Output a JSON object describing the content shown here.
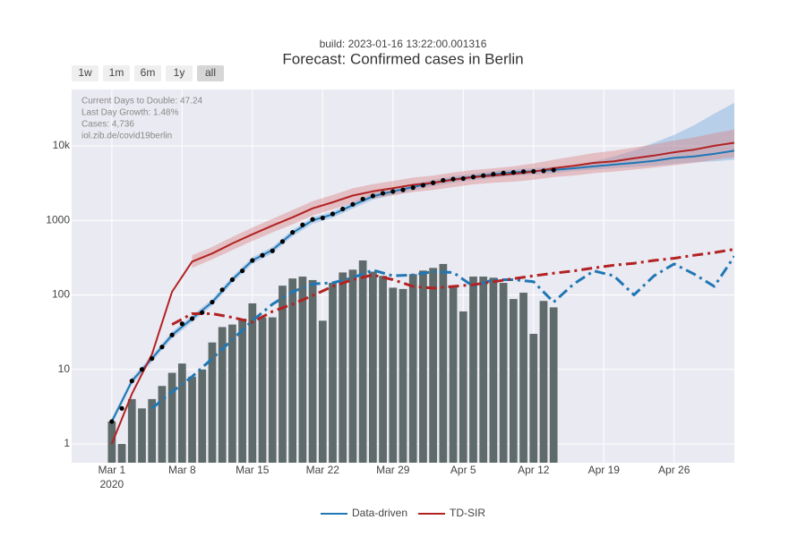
{
  "chart_data": {
    "type": "combo",
    "build": "build: 2023-01-16 13:22:00.001316",
    "title": "Forecast: Confirmed cases in Berlin",
    "buttons": [
      "1w",
      "1m",
      "6m",
      "1y",
      "all"
    ],
    "active_button": "all",
    "annotations": [
      "Current Days to Double: 47.24",
      "Last Day Growth: 1.48%",
      "Cases: 4,736",
      "iol.zib.de/covid19berlin"
    ],
    "xlim": [
      "2020-02-26",
      "2020-05-02"
    ],
    "xticks": [
      {
        "value": "2020-03-01",
        "label": "Mar 1",
        "sublabel": "2020"
      },
      {
        "value": "2020-03-08",
        "label": "Mar 8"
      },
      {
        "value": "2020-03-15",
        "label": "Mar 15"
      },
      {
        "value": "2020-03-22",
        "label": "Mar 22"
      },
      {
        "value": "2020-03-29",
        "label": "Mar 29"
      },
      {
        "value": "2020-04-05",
        "label": "Apr 5"
      },
      {
        "value": "2020-04-12",
        "label": "Apr 12"
      },
      {
        "value": "2020-04-19",
        "label": "Apr 19"
      },
      {
        "value": "2020-04-26",
        "label": "Apr 26"
      }
    ],
    "ylim": [
      0.56,
      57000
    ],
    "yticks": [
      1,
      10,
      100,
      1000,
      {
        "value": 10000,
        "label": "10k"
      }
    ],
    "log_y": true,
    "grid": true,
    "legend": "bottom",
    "bar_color": "#5f6b6b",
    "observed_color": "#000000",
    "x": [
      "2020-03-01",
      "2020-03-02",
      "2020-03-03",
      "2020-03-04",
      "2020-03-05",
      "2020-03-06",
      "2020-03-07",
      "2020-03-08",
      "2020-03-09",
      "2020-03-10",
      "2020-03-11",
      "2020-03-12",
      "2020-03-13",
      "2020-03-14",
      "2020-03-15",
      "2020-03-16",
      "2020-03-17",
      "2020-03-18",
      "2020-03-19",
      "2020-03-20",
      "2020-03-21",
      "2020-03-22",
      "2020-03-23",
      "2020-03-24",
      "2020-03-25",
      "2020-03-26",
      "2020-03-27",
      "2020-03-28",
      "2020-03-29",
      "2020-03-30",
      "2020-03-31",
      "2020-04-01",
      "2020-04-02",
      "2020-04-03",
      "2020-04-04",
      "2020-04-05",
      "2020-04-06",
      "2020-04-07",
      "2020-04-08",
      "2020-04-09",
      "2020-04-10",
      "2020-04-11",
      "2020-04-12",
      "2020-04-13",
      "2020-04-14"
    ],
    "bar_values": [
      2,
      1,
      4,
      3,
      4,
      6,
      9,
      12,
      8,
      10,
      23,
      37,
      40,
      48,
      77,
      50,
      50,
      133,
      166,
      176,
      158,
      45,
      145,
      200,
      218,
      290,
      205,
      180,
      125,
      120,
      190,
      212,
      230,
      260,
      133,
      60,
      176,
      176,
      170,
      145,
      88,
      107,
      30,
      83,
      68
    ],
    "observed_values": [
      2,
      3,
      7,
      10,
      14,
      20,
      29,
      41,
      48,
      58,
      80,
      117,
      160,
      210,
      290,
      340,
      390,
      520,
      690,
      870,
      1030,
      1080,
      1220,
      1420,
      1640,
      1930,
      2130,
      2310,
      2440,
      2560,
      2750,
      2960,
      3190,
      3450,
      3580,
      3640,
      3820,
      3990,
      4160,
      4310,
      4400,
      4510,
      4540,
      4620,
      4736
    ],
    "model_x": [
      "2020-03-01",
      "2020-03-03",
      "2020-03-05",
      "2020-03-07",
      "2020-03-09",
      "2020-03-11",
      "2020-03-13",
      "2020-03-15",
      "2020-03-17",
      "2020-03-19",
      "2020-03-21",
      "2020-03-23",
      "2020-03-25",
      "2020-03-27",
      "2020-03-29",
      "2020-03-31",
      "2020-04-02",
      "2020-04-04",
      "2020-04-06",
      "2020-04-08",
      "2020-04-10",
      "2020-04-12",
      "2020-04-14",
      "2020-04-16",
      "2020-04-18",
      "2020-04-20",
      "2020-04-22",
      "2020-04-24",
      "2020-04-26",
      "2020-04-28",
      "2020-04-30",
      "2020-05-02"
    ],
    "series": [
      {
        "name": "Data-driven",
        "color": "#1f77b4",
        "band_color": "#6fa8dc",
        "cumulative": [
          2,
          7,
          14,
          29,
          48,
          80,
          160,
          290,
          400,
          680,
          1000,
          1200,
          1600,
          2100,
          2450,
          2800,
          3200,
          3550,
          3850,
          4150,
          4400,
          4580,
          4750,
          5000,
          5300,
          5600,
          5900,
          6300,
          6900,
          7200,
          7800,
          8600
        ],
        "band_low": [
          1.8,
          6.3,
          12.6,
          26,
          43,
          72,
          144,
          261,
          360,
          612,
          900,
          1080,
          1440,
          1890,
          2205,
          2520,
          2880,
          3195,
          3465,
          3735,
          3960,
          4122,
          4275,
          4600,
          4800,
          5000,
          5200,
          5400,
          5700,
          6000,
          6200,
          6500
        ],
        "band_high": [
          2.2,
          7.7,
          15.4,
          32,
          53,
          88,
          176,
          319,
          440,
          748,
          1100,
          1320,
          1760,
          2310,
          2695,
          3080,
          3520,
          3905,
          4235,
          4565,
          4840,
          5038,
          5225,
          5500,
          6200,
          7200,
          8700,
          11000,
          14000,
          19000,
          27000,
          38000
        ],
        "daily": [
          null,
          null,
          3,
          5,
          8,
          14,
          25,
          45,
          75,
          110,
          140,
          145,
          170,
          215,
          180,
          185,
          205,
          200,
          130,
          160,
          160,
          150,
          80,
          140,
          210,
          180,
          100,
          180,
          260,
          190,
          130,
          330
        ]
      },
      {
        "name": "TD-SIR",
        "color": "#b22222",
        "band_color": "#d98080",
        "cumulative": [
          1,
          4.7,
          16,
          110,
          280,
          360,
          490,
          650,
          850,
          1100,
          1450,
          1750,
          2150,
          2450,
          2700,
          3000,
          3200,
          3500,
          3800,
          4000,
          4200,
          4500,
          5000,
          5400,
          5900,
          6200,
          6800,
          7400,
          8200,
          8900,
          10000,
          11000
        ],
        "band_low": [
          null,
          null,
          null,
          null,
          230,
          300,
          400,
          530,
          690,
          880,
          1160,
          1400,
          1720,
          1960,
          2160,
          2400,
          2560,
          2800,
          3040,
          3200,
          3300,
          3500,
          3800,
          4000,
          4300,
          4500,
          4800,
          5100,
          5500,
          5900,
          6500,
          7000
        ],
        "band_high": [
          null,
          null,
          null,
          null,
          340,
          440,
          600,
          800,
          1050,
          1380,
          1810,
          2190,
          2690,
          3060,
          3380,
          3750,
          4000,
          4380,
          4750,
          5000,
          5300,
          5800,
          6500,
          7200,
          8000,
          8600,
          9500,
          10500,
          11800,
          13000,
          14800,
          16500
        ],
        "daily": [
          null,
          null,
          null,
          40,
          56,
          56,
          50,
          43,
          60,
          75,
          98,
          130,
          160,
          185,
          160,
          130,
          123,
          130,
          137,
          150,
          165,
          180,
          195,
          210,
          230,
          250,
          265,
          290,
          310,
          340,
          370,
          410
        ]
      }
    ]
  }
}
